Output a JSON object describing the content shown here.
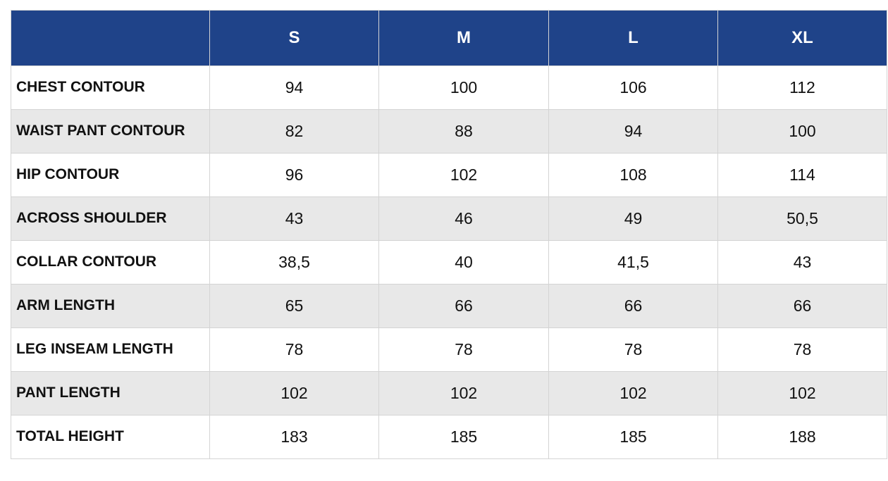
{
  "table": {
    "header": [
      "S",
      "M",
      "L",
      "XL"
    ],
    "rows": [
      {
        "label": "CHEST CONTOUR",
        "cells": [
          "94",
          "100",
          "106",
          "112"
        ]
      },
      {
        "label": "WAIST PANT CONTOUR",
        "cells": [
          "82",
          "88",
          "94",
          "100"
        ]
      },
      {
        "label": "HIP CONTOUR",
        "cells": [
          "96",
          "102",
          "108",
          "114"
        ]
      },
      {
        "label": "ACROSS SHOULDER",
        "cells": [
          "43",
          "46",
          "49",
          "50,5"
        ]
      },
      {
        "label": "COLLAR CONTOUR",
        "cells": [
          "38,5",
          "40",
          "41,5",
          "43"
        ]
      },
      {
        "label": "ARM LENGTH",
        "cells": [
          "65",
          "66",
          "66",
          "66"
        ]
      },
      {
        "label": "LEG INSEAM LENGTH",
        "cells": [
          "78",
          "78",
          "78",
          "78"
        ]
      },
      {
        "label": "PANT LENGTH",
        "cells": [
          "102",
          "102",
          "102",
          "102"
        ]
      },
      {
        "label": "TOTAL HEIGHT",
        "cells": [
          "183",
          "185",
          "185",
          "188"
        ]
      }
    ]
  }
}
